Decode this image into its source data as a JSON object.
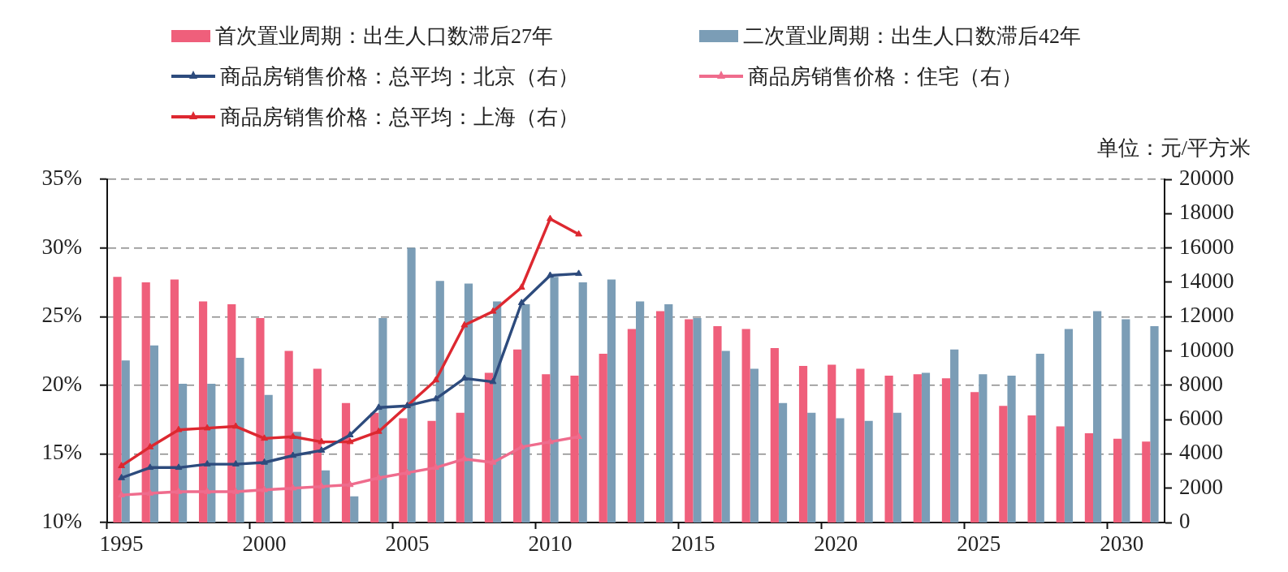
{
  "chart_data": {
    "type": "bar",
    "categories": [
      "1995",
      null,
      null,
      null,
      null,
      "2000",
      null,
      null,
      null,
      null,
      "2005",
      null,
      null,
      null,
      null,
      "2010",
      null,
      null,
      null,
      null,
      "2015",
      null,
      null,
      null,
      null,
      "2020",
      null,
      null,
      null,
      null,
      "2025",
      null,
      null,
      null,
      null,
      "2030",
      null
    ],
    "series": [
      {
        "name": "首次置业周期：出生人口数滞后27年",
        "color": "#ef5f7b",
        "values": [
          27.9,
          27.5,
          27.7,
          26.1,
          25.9,
          24.9,
          22.5,
          21.2,
          18.7,
          18.0,
          17.6,
          17.4,
          18.0,
          20.9,
          22.6,
          20.8,
          20.7,
          22.3,
          24.1,
          25.4,
          24.8,
          24.3,
          24.1,
          22.7,
          21.4,
          21.5,
          21.2,
          20.7,
          20.8,
          20.5,
          19.5,
          18.5,
          17.8,
          17.0,
          16.5,
          16.1,
          15.9
        ]
      },
      {
        "name": "二次置业周期：出生人口数滞后42年",
        "color": "#7b9db6",
        "values": [
          21.8,
          22.9,
          20.1,
          20.1,
          22.0,
          19.3,
          16.6,
          13.8,
          11.9,
          24.9,
          30.0,
          27.6,
          27.4,
          26.1,
          25.9,
          27.9,
          27.5,
          27.7,
          26.1,
          25.9,
          24.9,
          22.5,
          21.2,
          18.7,
          18.0,
          17.6,
          17.4,
          18.0,
          20.9,
          22.6,
          20.8,
          20.7,
          22.3,
          24.1,
          25.4,
          24.8,
          24.3
        ]
      },
      {
        "name": "商品房销售价格：总平均：北京（右）",
        "type": "line",
        "axis": "y2",
        "color": "#2d4b7d",
        "values": [
          2600,
          3200,
          3200,
          3400,
          3400,
          3500,
          3900,
          4200,
          5100,
          6700,
          6800,
          7200,
          8400,
          8200,
          12800,
          14400,
          14500,
          null,
          null,
          null,
          null,
          null,
          null,
          null,
          null,
          null,
          null,
          null,
          null,
          null,
          null,
          null,
          null,
          null,
          null,
          null,
          null
        ]
      },
      {
        "name": "商品房销售价格：住宅（右）",
        "type": "line",
        "axis": "y2",
        "color": "#ef6c8d",
        "values": [
          1600,
          1700,
          1800,
          1800,
          1800,
          1900,
          2000,
          2100,
          2200,
          2600,
          2900,
          3200,
          3700,
          3500,
          4400,
          4700,
          5000,
          null,
          null,
          null,
          null,
          null,
          null,
          null,
          null,
          null,
          null,
          null,
          null,
          null,
          null,
          null,
          null,
          null,
          null,
          null,
          null
        ]
      },
      {
        "name": "商品房销售价格：总平均：上海（右）",
        "type": "line",
        "axis": "y2",
        "color": "#dd2830",
        "values": [
          3300,
          4400,
          5400,
          5500,
          5600,
          4900,
          5000,
          4700,
          4700,
          5300,
          6800,
          8300,
          11500,
          12300,
          13700,
          17700,
          16800,
          null,
          null,
          null,
          null,
          null,
          null,
          null,
          null,
          null,
          null,
          null,
          null,
          null,
          null,
          null,
          null,
          null,
          null,
          null,
          null
        ]
      }
    ],
    "ylim": [
      10,
      35
    ],
    "yticks": [
      {
        "value": 10,
        "label": "10%"
      },
      {
        "value": 15,
        "label": "15%"
      },
      {
        "value": 20,
        "label": "20%"
      },
      {
        "value": 25,
        "label": "25%"
      },
      {
        "value": 30,
        "label": "30%"
      },
      {
        "value": 35,
        "label": "35%"
      }
    ],
    "y2lim": [
      0,
      20000
    ],
    "y2ticks": [
      0,
      2000,
      4000,
      6000,
      8000,
      10000,
      12000,
      14000,
      16000,
      18000,
      20000
    ],
    "y2label": "单位：元/平方米",
    "grid": "y",
    "legend": "top",
    "marker": "triangle"
  }
}
